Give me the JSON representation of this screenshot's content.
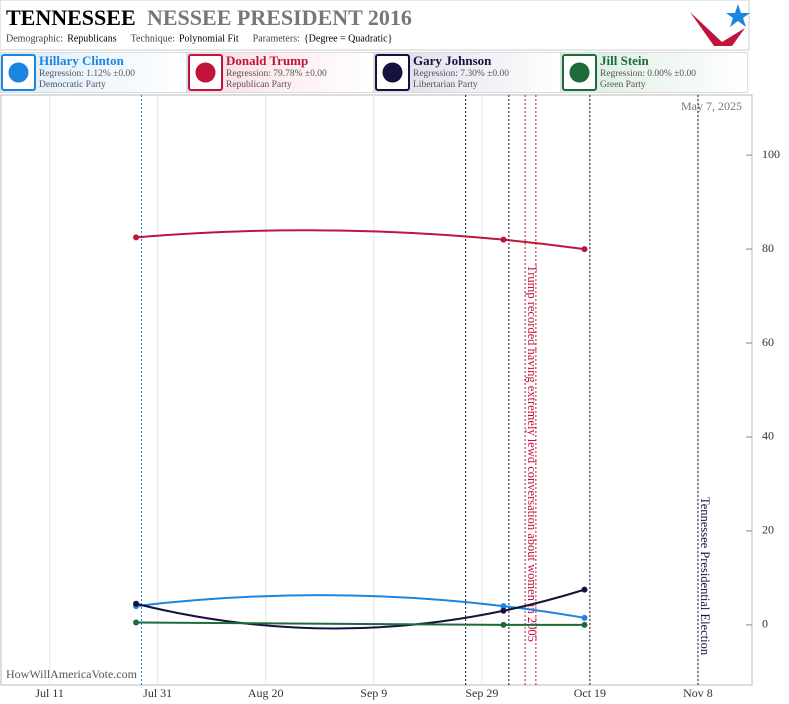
{
  "header": {
    "title_main": "TENNESSEE",
    "title_rest": "NESSEE PRESIDENT 2016",
    "params": [
      {
        "label": "Demographic:",
        "value": "Republicans"
      },
      {
        "label": "Technique:",
        "value": "Polynomial Fit"
      },
      {
        "label": "Parameters:",
        "value": "{Degree = Quadratic}"
      }
    ]
  },
  "chart_data": {
    "type": "line",
    "date_stamp": "May 7, 2025",
    "source": "HowWillAmericaVote.com",
    "x": [
      "Jul 27",
      "Oct 3",
      "Oct 18"
    ],
    "series": [
      {
        "name": "Hillary Clinton",
        "regression": "Regression: 1.12% ±0.00",
        "party": "Democratic Party",
        "color": "#1a86e0",
        "tint": "#dcecfb",
        "values": [
          4,
          4,
          1.5
        ]
      },
      {
        "name": "Donald Trump",
        "regression": "Regression: 79.78% ±0.00",
        "party": "Republican Party",
        "color": "#c0143c",
        "tint": "#fadbe2",
        "values": [
          82.5,
          82,
          80
        ]
      },
      {
        "name": "Gary Johnson",
        "regression": "Regression: 7.30% ±0.00",
        "party": "Libertarian Party",
        "color": "#15123d",
        "tint": "#dcdbe8",
        "values": [
          4.5,
          3,
          7.5
        ]
      },
      {
        "name": "Jill Stein",
        "regression": "Regression: 0.00% ±0.00",
        "party": "Green Party",
        "color": "#1e6b3a",
        "tint": "#d9ecdf",
        "values": [
          0.5,
          0,
          0
        ]
      }
    ],
    "events": [
      {
        "x": "Jul 28",
        "color": "#1a86e0"
      },
      {
        "x": "Sep 26",
        "color": "#15123d"
      },
      {
        "x": "Oct 4",
        "color": "#15123d"
      },
      {
        "x": "Oct 7",
        "color": "#c0143c",
        "label": "Trump recorded having extremely lewd conversation about women in 2005"
      },
      {
        "x": "Oct 9",
        "color": "#c0143c"
      },
      {
        "x": "Oct 19",
        "color": "#15123d"
      },
      {
        "x": "Nov 8",
        "color": "#15123d",
        "label": "Tennessee Presidential Election"
      }
    ],
    "xlim": [
      "Jul 2",
      "Nov 18"
    ],
    "xticks": [
      "Jul 11",
      "Jul 31",
      "Aug 20",
      "Sep 9",
      "Sep 29",
      "Oct 19",
      "Nov 8"
    ],
    "ylim": [
      -12.8,
      112.8
    ],
    "yticks": [
      0,
      20,
      40,
      60,
      80,
      100
    ],
    "grid": true
  }
}
